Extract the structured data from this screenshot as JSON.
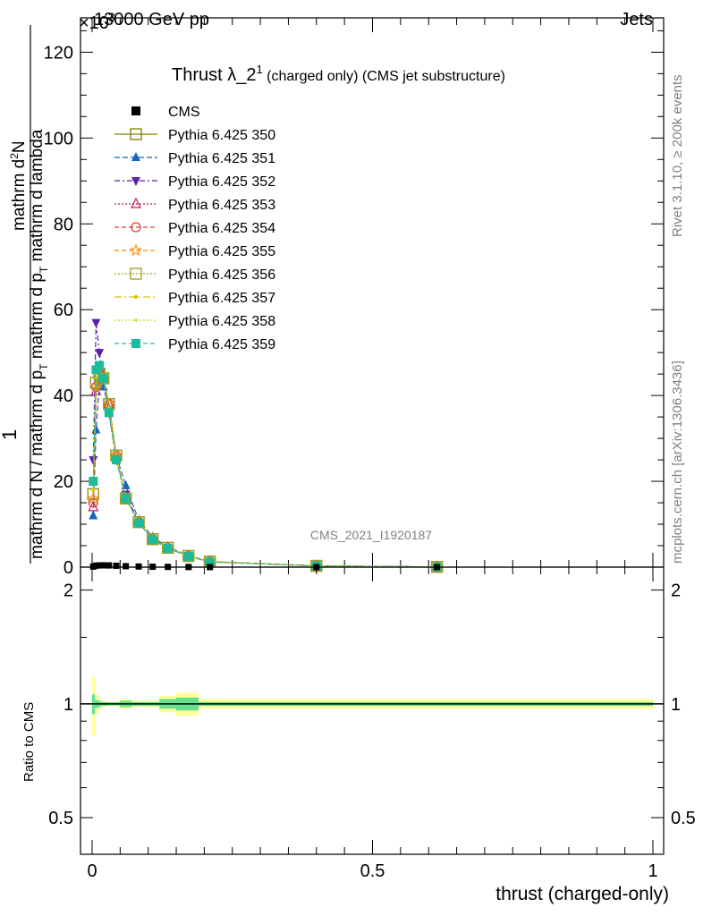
{
  "header": {
    "energy": "13000 GeV pp",
    "process": "Jets",
    "exponent": "×10",
    "exponent_power": "3"
  },
  "side_labels": {
    "rivet": "Rivet 3.1.10, ≥ 200k events",
    "mcplots": "mcplots.cern.ch [arXiv:1306.3436]"
  },
  "chart_data": [
    {
      "type": "line",
      "title_main": "Thrust λ_2",
      "title_sup": "1",
      "title_rest": " (charged only) (CMS jet substructure)",
      "watermark": "CMS_2021_I1920187",
      "ylabel_left": "1",
      "ylabel_num": "mathrm d",
      "ylabel_num_sup": "2",
      "ylabel_num_rest": "N",
      "ylabel_den": "mathrm d N / mathrm d p",
      "ylabel_den_sub": "T",
      "ylabel_den_rest": " mathrm d p",
      "ylabel_den_sub2": "T",
      "ylabel_den_rest2": " mathrm d lambda",
      "xlim": [
        0,
        1
      ],
      "ylim": [
        0,
        128
      ],
      "yticks": [
        0,
        20,
        40,
        60,
        80,
        100,
        120
      ],
      "ytick_labels": [
        "0",
        "20",
        "40",
        "60",
        "80",
        "100",
        "120"
      ],
      "x": [
        0.002,
        0.007,
        0.013,
        0.02,
        0.03,
        0.043,
        0.06,
        0.083,
        0.108,
        0.135,
        0.172,
        0.21,
        0.4,
        0.615
      ],
      "series": [
        {
          "name": "CMS",
          "color": "#000000",
          "marker": "square-filled",
          "dash": "none",
          "values": [
            0.12,
            0.35,
            0.4,
            0.42,
            0.4,
            0.32,
            0.22,
            0.14,
            0.09,
            0.05,
            0.03,
            0.01,
            0.002,
            0.0002
          ]
        },
        {
          "name": "Pythia 6.425 350",
          "color": "#808000",
          "marker": "square-open",
          "dash": "solid",
          "values": [
            17,
            43,
            45,
            44,
            38,
            26,
            16,
            10.5,
            6.5,
            4.5,
            2.6,
            1.3,
            0.3,
            0.05
          ]
        },
        {
          "name": "Pythia 6.425 351",
          "color": "#1565c0",
          "marker": "triangle-up-filled",
          "dash": "6,3",
          "values": [
            12,
            32,
            43,
            42,
            37,
            26,
            19,
            11,
            7,
            4.7,
            2.7,
            1.3,
            0.3,
            0.05
          ]
        },
        {
          "name": "Pythia 6.425 352",
          "color": "#5b1fb0",
          "marker": "triangle-down-filled",
          "dash": "6,3,2,3",
          "values": [
            25,
            57,
            50,
            44,
            36,
            25,
            17,
            10.5,
            6.5,
            4.4,
            2.6,
            1.2,
            0.3,
            0.05
          ]
        },
        {
          "name": "Pythia 6.425 353",
          "color": "#c2185b",
          "marker": "triangle-up-open",
          "dash": "2,2",
          "values": [
            14,
            41,
            46,
            44,
            38,
            26,
            16,
            10.5,
            6.5,
            4.5,
            2.6,
            1.3,
            0.3,
            0.05
          ]
        },
        {
          "name": "Pythia 6.425 354",
          "color": "#e53935",
          "marker": "circle-open",
          "dash": "5,3",
          "values": [
            15,
            42,
            46,
            44,
            38,
            26,
            16,
            10.5,
            6.5,
            4.5,
            2.6,
            1.3,
            0.3,
            0.05
          ]
        },
        {
          "name": "Pythia 6.425 355",
          "color": "#fb8c00",
          "marker": "star-open",
          "dash": "5,3",
          "values": [
            16,
            42,
            46,
            44,
            38,
            26,
            16,
            10.5,
            6.5,
            4.5,
            2.6,
            1.3,
            0.3,
            0.05
          ]
        },
        {
          "name": "Pythia 6.425 356",
          "color": "#9e9d24",
          "marker": "square-open",
          "dash": "2,2",
          "values": [
            17,
            43,
            45,
            44,
            38,
            26,
            16,
            10.5,
            6.5,
            4.5,
            2.6,
            1.3,
            0.3,
            0.05
          ]
        },
        {
          "name": "Pythia 6.425 357",
          "color": "#d4c400",
          "marker": "dot",
          "dash": "8,3,2,3",
          "values": [
            18,
            44,
            46,
            44,
            37,
            26,
            16,
            10.5,
            6.5,
            4.5,
            2.6,
            1.3,
            0.3,
            0.05
          ]
        },
        {
          "name": "Pythia 6.425 358",
          "color": "#c6d61a",
          "marker": "dot-small",
          "dash": "2,2",
          "values": [
            18,
            44,
            46,
            44,
            37,
            26,
            16,
            10.5,
            6.5,
            4.5,
            2.6,
            1.3,
            0.3,
            0.05
          ]
        },
        {
          "name": "Pythia 6.425 359",
          "color": "#1abc9c",
          "marker": "square-filled",
          "dash": "5,3",
          "values": [
            20,
            46,
            47,
            44,
            36,
            25,
            16,
            10.3,
            6.4,
            4.4,
            2.5,
            1.2,
            0.3,
            0.05
          ]
        }
      ]
    },
    {
      "type": "line",
      "ylabel": "Ratio to CMS",
      "xlabel": "thrust (charged-only)",
      "xlim": [
        0,
        1
      ],
      "ylim": [
        0.4,
        2.3
      ],
      "log_y": true,
      "xticks": [
        0,
        0.5,
        1
      ],
      "xtick_labels": [
        "0",
        "0.5",
        "1"
      ],
      "yticks": [
        0.5,
        1,
        2
      ],
      "ytick_labels": [
        "0.5",
        "1",
        "2"
      ],
      "band_edges": [
        0,
        0.005,
        0.01,
        0.015,
        0.025,
        0.035,
        0.05,
        0.07,
        0.095,
        0.12,
        0.15,
        0.19,
        0.23,
        1.0
      ],
      "band_inner": [
        0.06,
        0.025,
        0.02,
        0.012,
        0.01,
        0.01,
        0.02,
        0.012,
        0.012,
        0.03,
        0.04,
        0.012,
        0.012
      ],
      "band_outer": [
        0.18,
        0.06,
        0.04,
        0.02,
        0.015,
        0.015,
        0.03,
        0.02,
        0.02,
        0.05,
        0.07,
        0.03,
        0.03
      ],
      "reference": 1,
      "band_inner_color": "#66e28f",
      "band_outer_color": "#ffff99"
    }
  ]
}
